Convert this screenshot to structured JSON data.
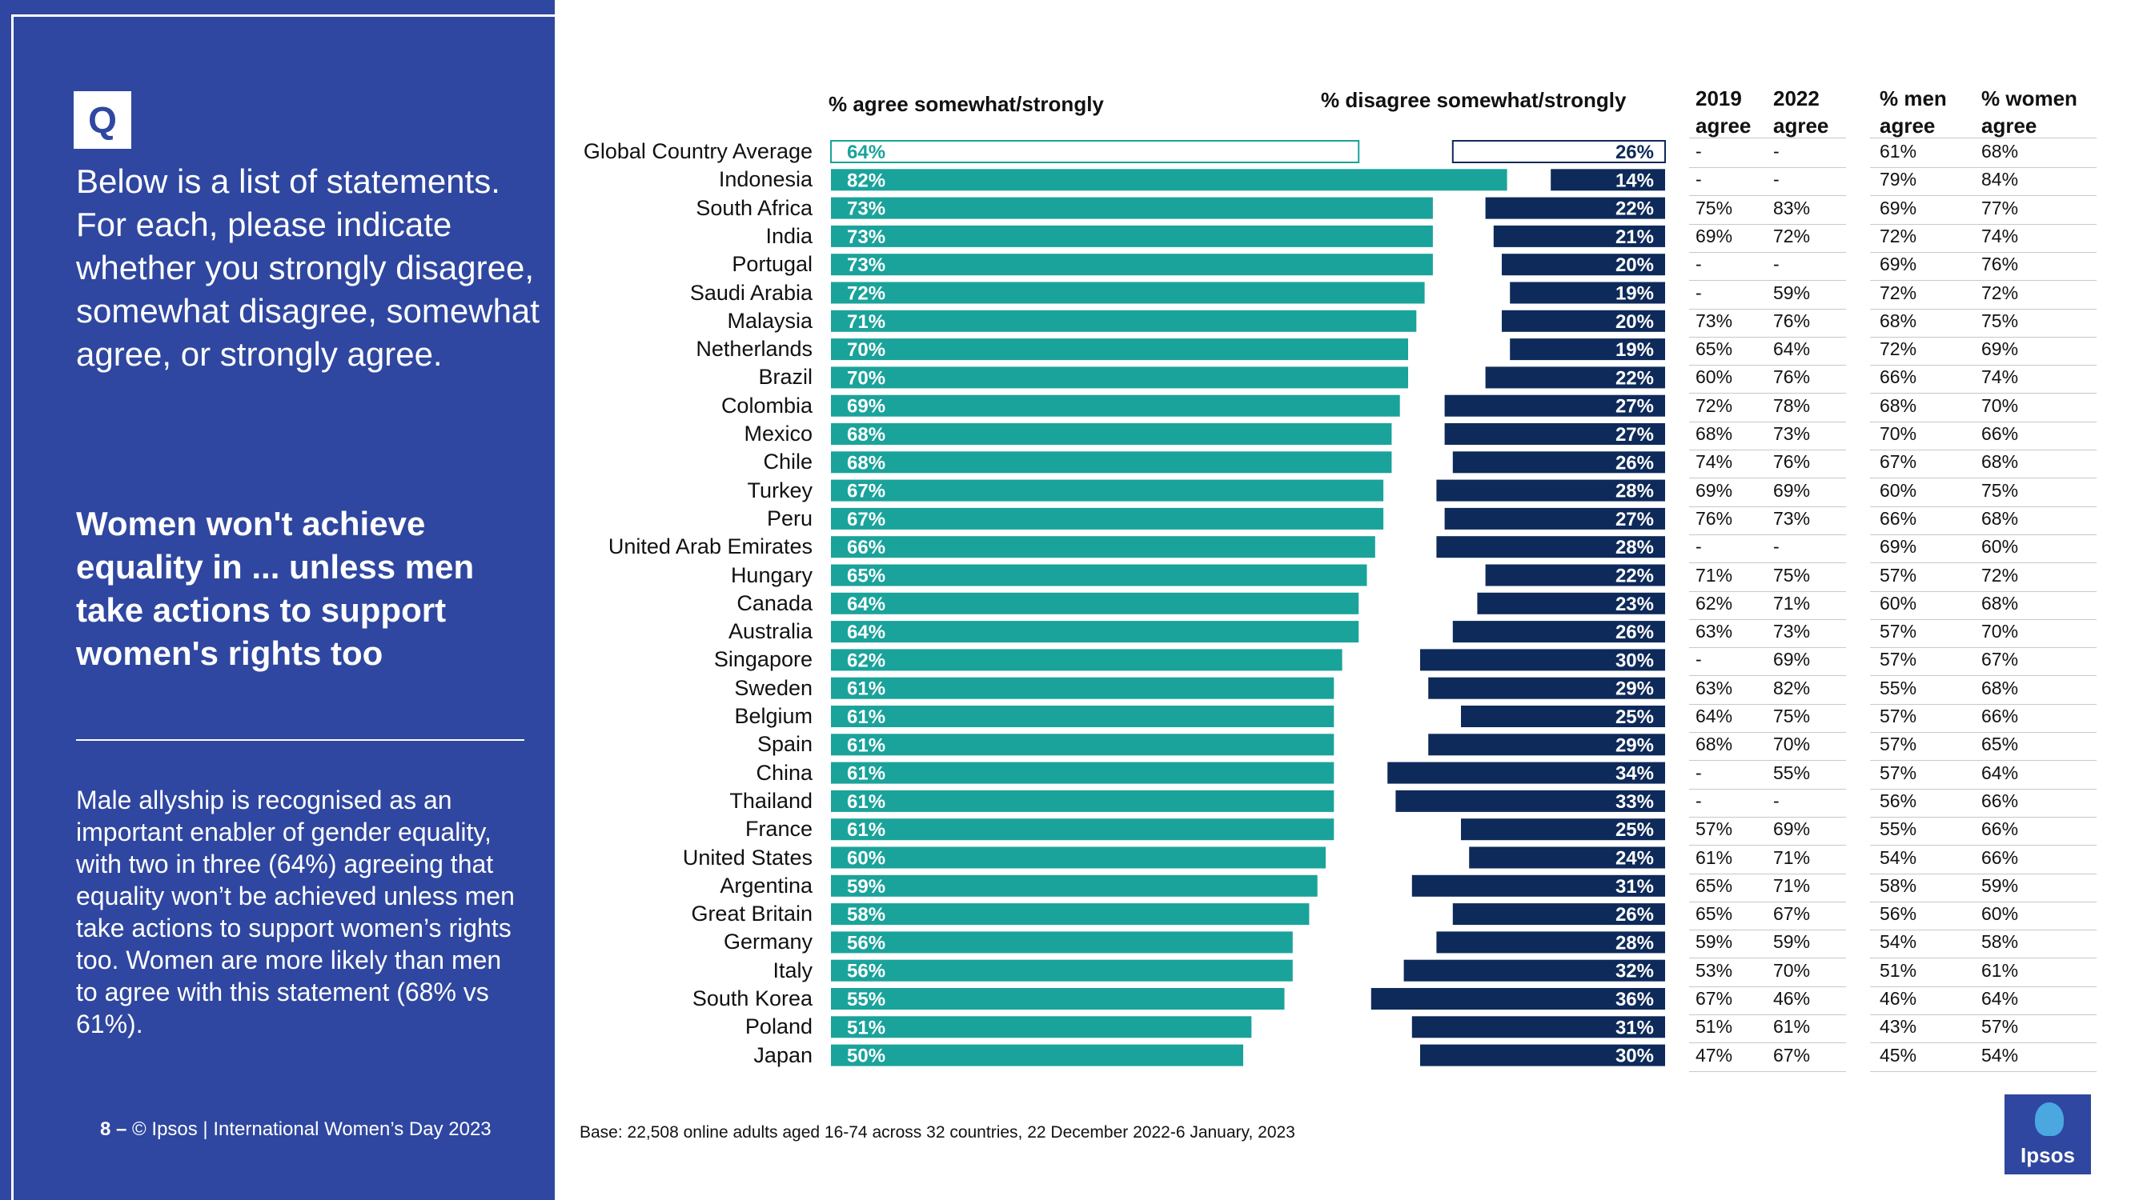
{
  "sidebar": {
    "badge": "Q",
    "question": "Below is a list of statements. For each, please indicate whether you strongly disagree, somewhat disagree, somewhat agree, or strongly agree.",
    "statement": "Women won't achieve equality in ... unless men take actions to support women's rights too",
    "insight": "Male allyship is recognised as an important enabler of gender equality, with two in three (64%) agreeing that equality won’t be achieved unless men take actions to support women’s rights too. Women are more likely than men to agree with this statement (68% vs 61%).",
    "footer_page": "8 –",
    "footer_text": "© Ipsos | International Women’s Day 2023"
  },
  "base_note": "Base: 22,508 online adults aged 16-74 across 32 countries, 22 December 2022-6 January, 2023",
  "logo_text": "Ipsos",
  "colors": {
    "agree": "#1aa39a",
    "disagree": "#0e2a5a",
    "sidebar": "#2f47a0",
    "outline": "#1aa39a"
  },
  "table": {
    "headers": {
      "y2019": "2019 agree",
      "y2022": "2022 agree",
      "men": "% men agree",
      "women": "% women agree"
    },
    "rows": [
      [
        "-",
        "-",
        "61%",
        "68%"
      ],
      [
        "-",
        "-",
        "79%",
        "84%"
      ],
      [
        "75%",
        "83%",
        "69%",
        "77%"
      ],
      [
        "69%",
        "72%",
        "72%",
        "74%"
      ],
      [
        "-",
        "-",
        "69%",
        "76%"
      ],
      [
        "-",
        "59%",
        "72%",
        "72%"
      ],
      [
        "73%",
        "76%",
        "68%",
        "75%"
      ],
      [
        "65%",
        "64%",
        "72%",
        "69%"
      ],
      [
        "60%",
        "76%",
        "66%",
        "74%"
      ],
      [
        "72%",
        "78%",
        "68%",
        "70%"
      ],
      [
        "68%",
        "73%",
        "70%",
        "66%"
      ],
      [
        "74%",
        "76%",
        "67%",
        "68%"
      ],
      [
        "69%",
        "69%",
        "60%",
        "75%"
      ],
      [
        "76%",
        "73%",
        "66%",
        "68%"
      ],
      [
        "-",
        "-",
        "69%",
        "60%"
      ],
      [
        "71%",
        "75%",
        "57%",
        "72%"
      ],
      [
        "62%",
        "71%",
        "60%",
        "68%"
      ],
      [
        "63%",
        "73%",
        "57%",
        "70%"
      ],
      [
        "-",
        "69%",
        "57%",
        "67%"
      ],
      [
        "63%",
        "82%",
        "55%",
        "68%"
      ],
      [
        "64%",
        "75%",
        "57%",
        "66%"
      ],
      [
        "68%",
        "70%",
        "57%",
        "65%"
      ],
      [
        "-",
        "55%",
        "57%",
        "64%"
      ],
      [
        "-",
        "-",
        "56%",
        "66%"
      ],
      [
        "57%",
        "69%",
        "55%",
        "66%"
      ],
      [
        "61%",
        "71%",
        "54%",
        "66%"
      ],
      [
        "65%",
        "71%",
        "58%",
        "59%"
      ],
      [
        "65%",
        "67%",
        "56%",
        "60%"
      ],
      [
        "59%",
        "59%",
        "54%",
        "58%"
      ],
      [
        "53%",
        "70%",
        "51%",
        "61%"
      ],
      [
        "67%",
        "46%",
        "46%",
        "64%"
      ],
      [
        "51%",
        "61%",
        "43%",
        "57%"
      ],
      [
        "47%",
        "67%",
        "45%",
        "54%"
      ]
    ]
  },
  "chart_data": {
    "type": "bar",
    "title": "Women won't achieve equality in ... unless men take actions to support women's rights too",
    "agree_label": "% agree somewhat/strongly",
    "disagree_label": "% disagree somewhat/strongly",
    "categories": [
      "Global Country Average",
      "Indonesia",
      "South Africa",
      "India",
      "Portugal",
      "Saudi Arabia",
      "Malaysia",
      "Netherlands",
      "Brazil",
      "Colombia",
      "Mexico",
      "Chile",
      "Turkey",
      "Peru",
      "United Arab Emirates",
      "Hungary",
      "Canada",
      "Australia",
      "Singapore",
      "Sweden",
      "Belgium",
      "Spain",
      "China",
      "Thailand",
      "France",
      "United States",
      "Argentina",
      "Great Britain",
      "Germany",
      "Italy",
      "South Korea",
      "Poland",
      "Japan"
    ],
    "series": [
      {
        "name": "% agree somewhat/strongly",
        "values": [
          64,
          82,
          73,
          73,
          73,
          72,
          71,
          70,
          70,
          69,
          68,
          68,
          67,
          67,
          66,
          65,
          64,
          64,
          62,
          61,
          61,
          61,
          61,
          61,
          61,
          60,
          59,
          58,
          56,
          56,
          55,
          51,
          50
        ]
      },
      {
        "name": "% disagree somewhat/strongly",
        "values": [
          26,
          14,
          22,
          21,
          20,
          19,
          20,
          19,
          22,
          27,
          27,
          26,
          28,
          27,
          28,
          22,
          23,
          26,
          30,
          29,
          25,
          29,
          34,
          33,
          25,
          24,
          31,
          26,
          28,
          32,
          36,
          31,
          30
        ]
      }
    ]
  }
}
